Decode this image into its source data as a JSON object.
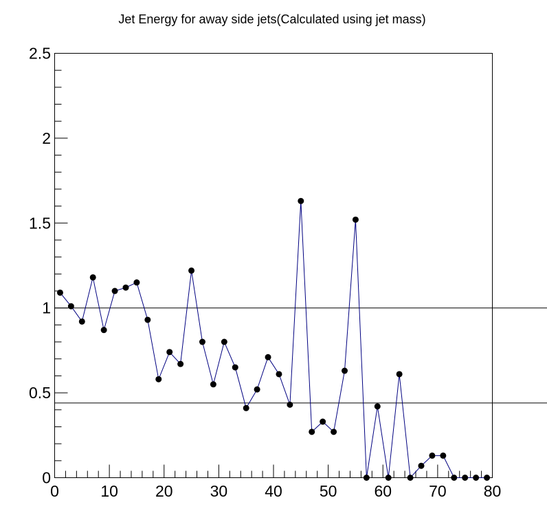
{
  "chart_data": {
    "type": "line",
    "title": "Jet Energy for away side jets(Calculated using jet mass)",
    "xlabel": "",
    "ylabel": "",
    "xlim": [
      0,
      80
    ],
    "ylim": [
      0,
      2.5
    ],
    "x_ticks": [
      "0",
      "10",
      "20",
      "30",
      "40",
      "50",
      "60",
      "70",
      "80"
    ],
    "y_ticks": [
      "0",
      "0.5",
      "1",
      "1.5",
      "2",
      "2.5"
    ],
    "grid": false,
    "legend": "none",
    "reference_lines": [
      1.0,
      0.44
    ],
    "line_color": "#000080",
    "marker_color": "#000000",
    "series": [
      {
        "x": [
          1,
          3,
          5,
          7,
          9,
          11,
          13,
          15,
          17,
          19,
          21,
          23,
          25,
          27,
          29,
          31,
          33,
          35,
          37,
          39,
          41,
          43,
          45,
          47,
          49,
          51,
          53,
          55,
          57,
          59,
          61,
          63,
          65,
          67,
          69,
          71,
          73,
          75,
          77,
          79
        ],
        "values": [
          1.09,
          1.01,
          0.92,
          1.18,
          0.87,
          1.1,
          1.12,
          1.15,
          0.93,
          0.58,
          0.74,
          0.67,
          1.22,
          0.8,
          0.55,
          0.8,
          0.65,
          0.41,
          0.52,
          0.71,
          0.61,
          0.43,
          1.63,
          0.27,
          0.33,
          0.27,
          0.63,
          1.52,
          0.0,
          0.42,
          0.0,
          0.61,
          0.0,
          0.07,
          0.13,
          0.13,
          0.0,
          0.0,
          0.0,
          0.0
        ]
      }
    ]
  }
}
